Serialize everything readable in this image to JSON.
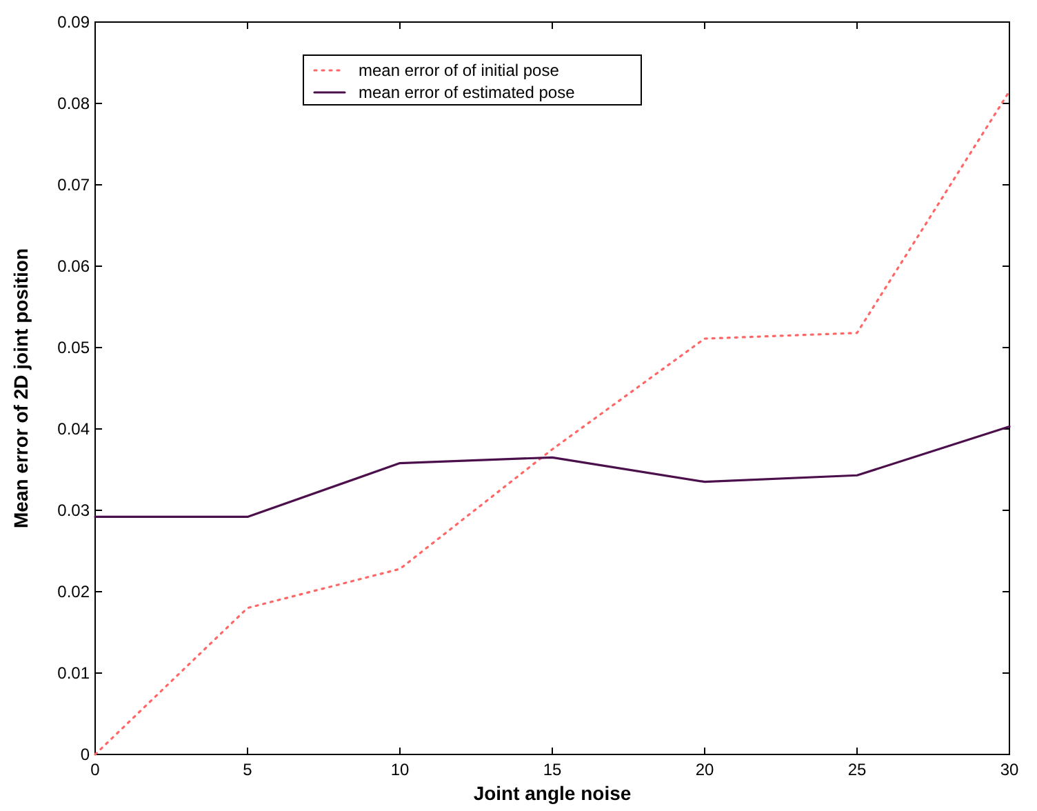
{
  "chart_data": {
    "type": "line",
    "xlabel": "Joint angle noise",
    "ylabel": "Mean error of 2D joint position",
    "x": [
      0,
      5,
      10,
      15,
      20,
      25,
      30
    ],
    "series": [
      {
        "name": "mean error of of initial pose",
        "color": "#ff6666",
        "line_style": "dotted",
        "values": [
          0,
          0.018,
          0.0228,
          0.0375,
          0.0511,
          0.0518,
          0.0815
        ]
      },
      {
        "name": "mean error of estimated pose",
        "color": "#4b0f4b",
        "line_style": "solid",
        "values": [
          0.0292,
          0.0292,
          0.0358,
          0.0365,
          0.0335,
          0.0343,
          0.0403
        ]
      }
    ],
    "xlim": [
      0,
      30
    ],
    "xticks": [
      0,
      5,
      10,
      15,
      20,
      25,
      30
    ],
    "ylim": [
      0,
      0.09
    ],
    "yticks": [
      0,
      0.01,
      0.02,
      0.03,
      0.04,
      0.05,
      0.06,
      0.07,
      0.08,
      0.09
    ],
    "grid": false,
    "legend": "top",
    "marker": "none"
  }
}
